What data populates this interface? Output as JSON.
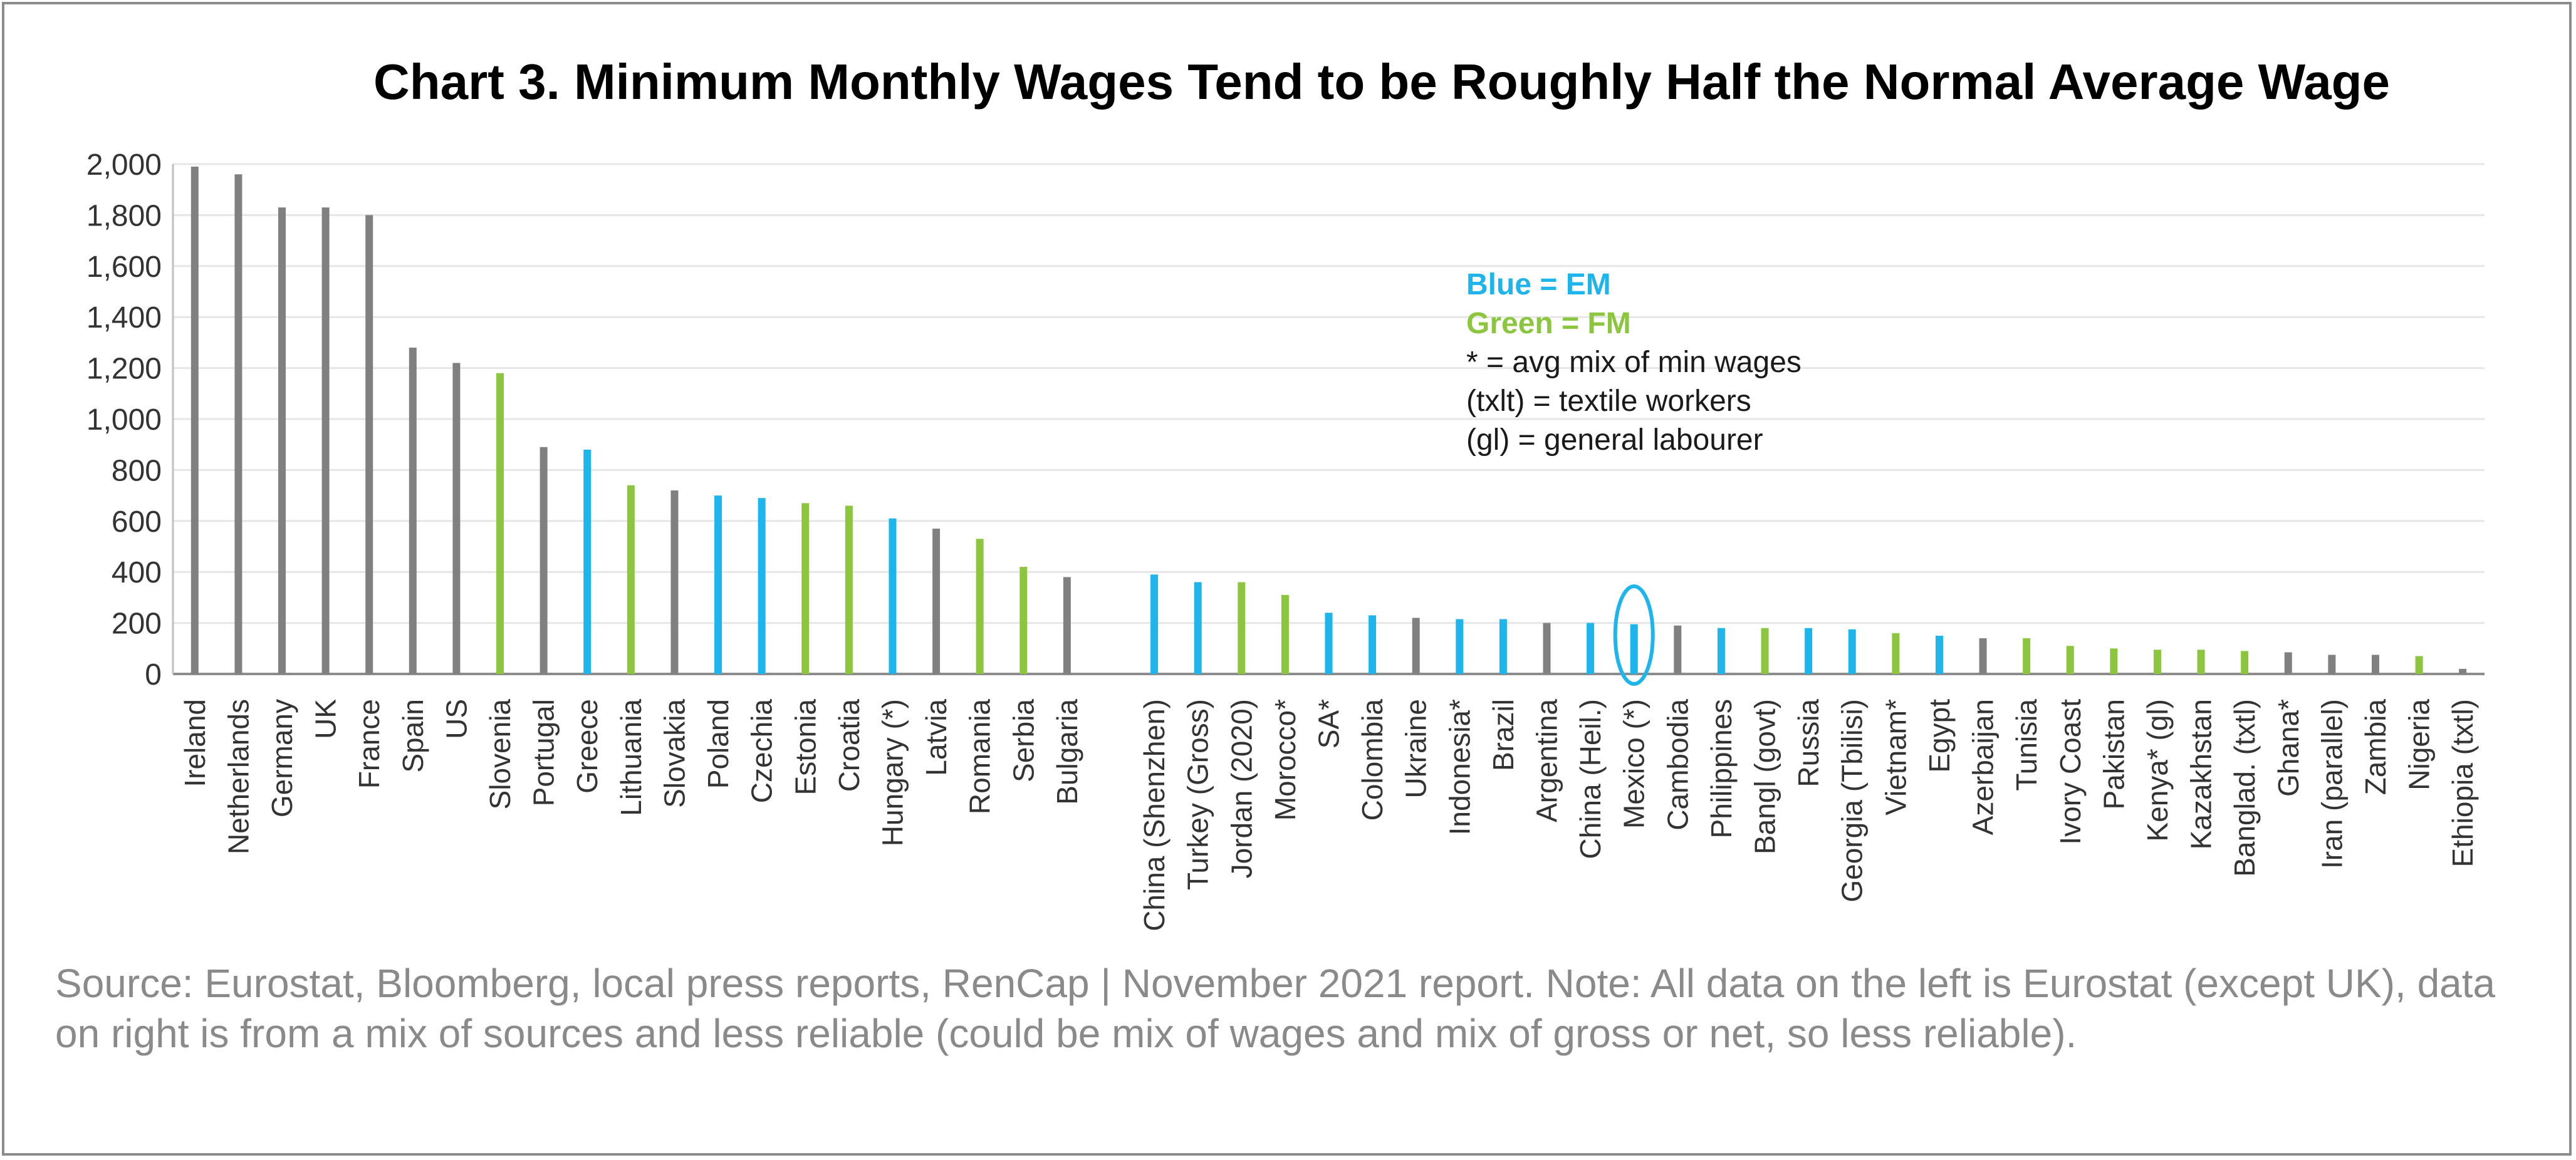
{
  "chart_data": {
    "type": "bar",
    "title": "Chart 3. Minimum Monthly Wages Tend to be Roughly Half the Normal Average Wage",
    "ylim": [
      0,
      2000
    ],
    "yticks": [
      "0",
      "200",
      "400",
      "600",
      "800",
      "1,000",
      "1,200",
      "1,400",
      "1,600",
      "1,800",
      "2,000"
    ],
    "grid": true,
    "colors": {
      "gray": "#808080",
      "blue": "#1eb4ec",
      "green": "#8cc63f",
      "highlight": "#1eb4ec"
    },
    "categories": [
      "Ireland",
      "Netherlands",
      "Germany",
      "UK",
      "France",
      "Spain",
      "US",
      "Slovenia",
      "Portugal",
      "Greece",
      "Lithuania",
      "Slovakia",
      "Poland",
      "Czechia",
      "Estonia",
      "Croatia",
      "Hungary (*)",
      "Latvia",
      "Romania",
      "Serbia",
      "Bulgaria",
      "",
      "China (Shenzhen)",
      "Turkey (Gross)",
      "Jordan (2020)",
      "Morocco*",
      "SA*",
      "Colombia",
      "Ukraine",
      "Indonesia*",
      "Brazil",
      "Argentina",
      "China (Heil.)",
      "Mexico (*)",
      "Cambodia",
      "Philippines",
      "Bangl (govt)",
      "Russia",
      "Georgia (Tbilisi)",
      "Vietnam*",
      "Egypt",
      "Azerbaijan",
      "Tunisia",
      "Ivory Coast",
      "Pakistan",
      "Kenya* (gl)",
      "Kazakhstan",
      "Banglad. (txtl)",
      "Ghana*",
      "Iran (parallel)",
      "Zambia",
      "Nigeria",
      "Ethiopia (txtl)"
    ],
    "values": [
      1990,
      1960,
      1830,
      1830,
      1800,
      1280,
      1220,
      1180,
      890,
      880,
      740,
      720,
      700,
      690,
      670,
      660,
      610,
      570,
      530,
      420,
      380,
      null,
      390,
      360,
      360,
      310,
      240,
      230,
      220,
      215,
      215,
      200,
      200,
      195,
      190,
      180,
      180,
      180,
      175,
      160,
      150,
      140,
      140,
      110,
      100,
      95,
      95,
      90,
      85,
      75,
      75,
      70,
      20
    ],
    "bar_colors": [
      "gray",
      "gray",
      "gray",
      "gray",
      "gray",
      "gray",
      "gray",
      "green",
      "gray",
      "blue",
      "green",
      "gray",
      "blue",
      "blue",
      "green",
      "green",
      "blue",
      "gray",
      "green",
      "green",
      "gray",
      null,
      "blue",
      "blue",
      "green",
      "green",
      "blue",
      "blue",
      "gray",
      "blue",
      "blue",
      "gray",
      "blue",
      "blue",
      "gray",
      "blue",
      "green",
      "blue",
      "blue",
      "green",
      "blue",
      "gray",
      "green",
      "green",
      "green",
      "green",
      "green",
      "green",
      "gray",
      "gray",
      "gray",
      "green",
      "gray"
    ],
    "highlighted_category": "Mexico (*)",
    "legend": [
      {
        "text": "Blue = EM",
        "color": "blue"
      },
      {
        "text": "Green = FM",
        "color": "green"
      },
      {
        "text": "* = avg mix of min wages",
        "color": "text"
      },
      {
        "text": "(txlt) = textile workers",
        "color": "text"
      },
      {
        "text": "(gl) = general labourer",
        "color": "text"
      }
    ]
  },
  "footer": {
    "source": "Source: Eurostat, Bloomberg, local press reports, RenCap | November 2021 report. Note: All data on the left is Eurostat (except UK), data on right is from a mix of sources and less reliable (could be mix of wages and mix of gross or net, so less reliable)."
  }
}
